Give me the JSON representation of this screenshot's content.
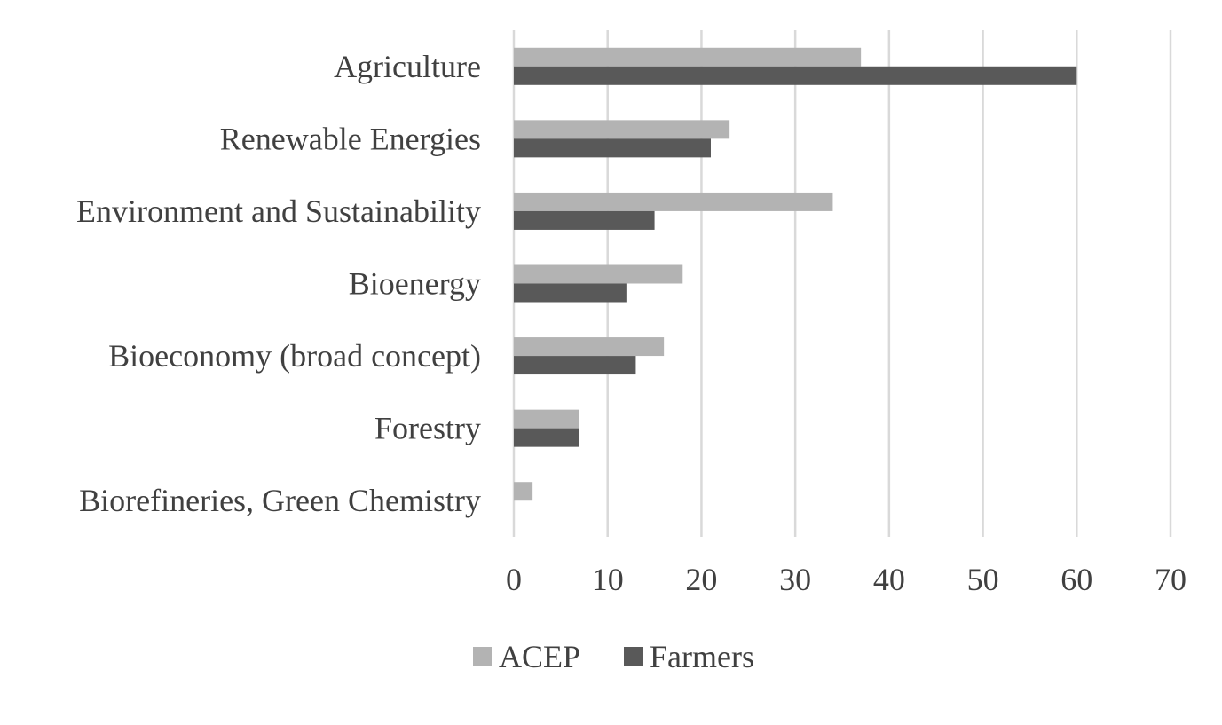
{
  "chart_data": {
    "type": "bar",
    "orientation": "horizontal",
    "title": "",
    "xlabel": "",
    "ylabel": "",
    "categories": [
      "Agriculture",
      "Renewable Energies",
      "Environment and Sustainability",
      "Bioenergy",
      "Bioeconomy (broad concept)",
      "Forestry",
      "Biorefineries, Green Chemistry"
    ],
    "series": [
      {
        "name": "ACEP",
        "color": "#b3b3b3",
        "values": [
          37,
          23,
          34,
          18,
          16,
          7,
          2
        ]
      },
      {
        "name": "Farmers",
        "color": "#595959",
        "values": [
          60,
          21,
          15,
          12,
          13,
          7,
          0
        ]
      }
    ],
    "xlim": [
      0,
      70
    ],
    "xticks": [
      "0",
      "10",
      "20",
      "30",
      "40",
      "50",
      "60",
      "70"
    ],
    "grid": true,
    "legend_position": "bottom"
  }
}
